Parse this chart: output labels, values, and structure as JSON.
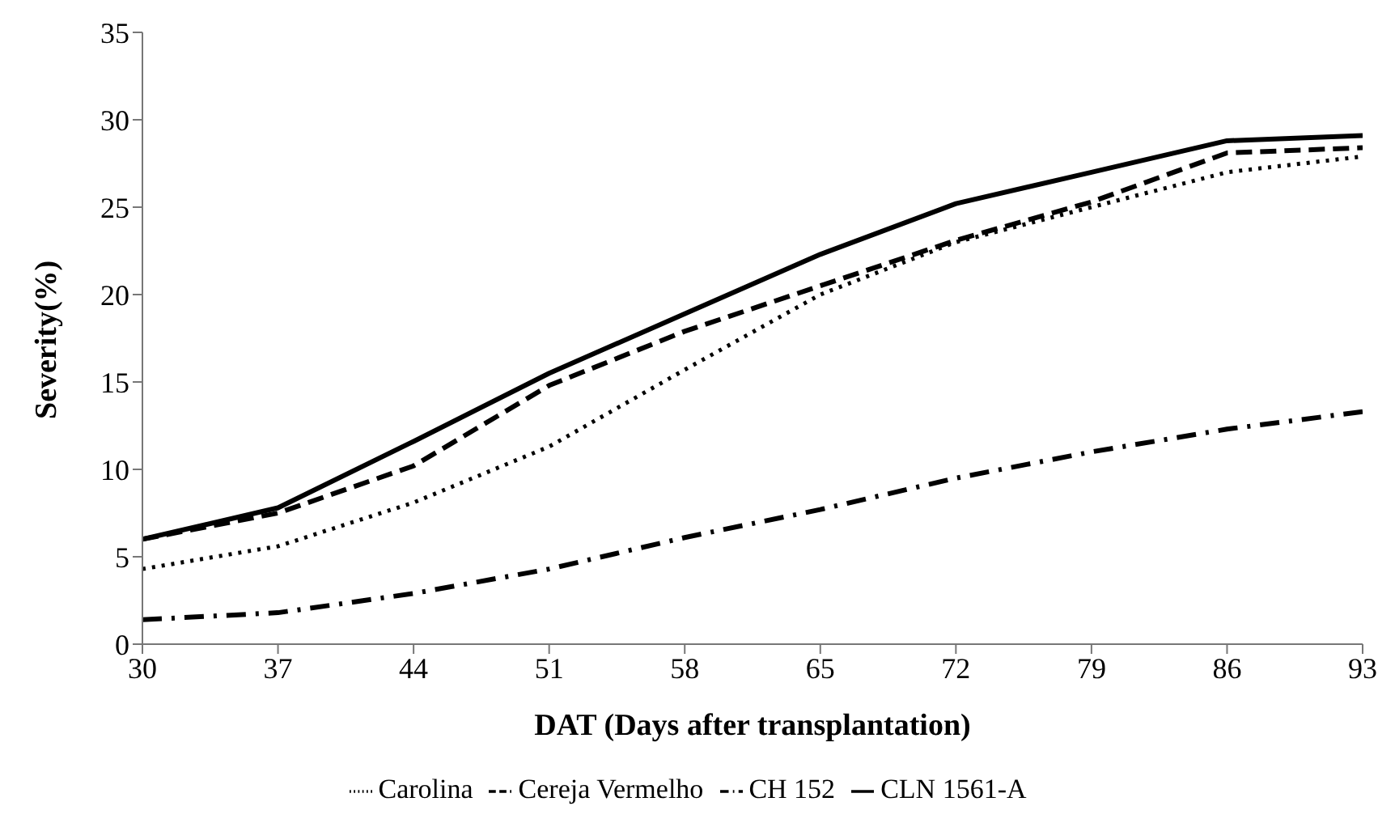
{
  "chart_data": {
    "type": "line",
    "xlabel": "DAT (Days after transplantation)",
    "ylabel": "Severity(%)",
    "x": [
      30,
      37,
      44,
      51,
      58,
      65,
      72,
      79,
      86,
      93
    ],
    "xlim": [
      30,
      93
    ],
    "xticks": [
      30,
      37,
      44,
      51,
      58,
      65,
      72,
      79,
      86,
      93
    ],
    "ylim": [
      0,
      35
    ],
    "yticks": [
      0,
      5,
      10,
      15,
      20,
      25,
      30,
      35
    ],
    "grid": false,
    "legend": "bottom",
    "marker": "none",
    "series": [
      {
        "name": "Carolina",
        "color": "#000000",
        "line_style": "dotted",
        "values": [
          4.3,
          5.6,
          8.1,
          11.3,
          15.7,
          20,
          23,
          25,
          27,
          27.9
        ]
      },
      {
        "name": "Cereja Vermelho",
        "color": "#000000",
        "line_style": "dashed",
        "values": [
          6,
          7.5,
          10.2,
          14.8,
          17.9,
          20.5,
          23.1,
          25.3,
          28.1,
          28.4
        ]
      },
      {
        "name": "CH 152",
        "color": "#000000",
        "line_style": "dashdot",
        "values": [
          1.4,
          1.8,
          2.9,
          4.3,
          6.1,
          7.7,
          9.5,
          11,
          12.3,
          13.3
        ]
      },
      {
        "name": "CLN 1561-A",
        "color": "#000000",
        "line_style": "solid",
        "values": [
          6,
          7.8,
          11.6,
          15.5,
          18.9,
          22.3,
          25.2,
          27,
          28.8,
          29.1
        ]
      }
    ]
  }
}
